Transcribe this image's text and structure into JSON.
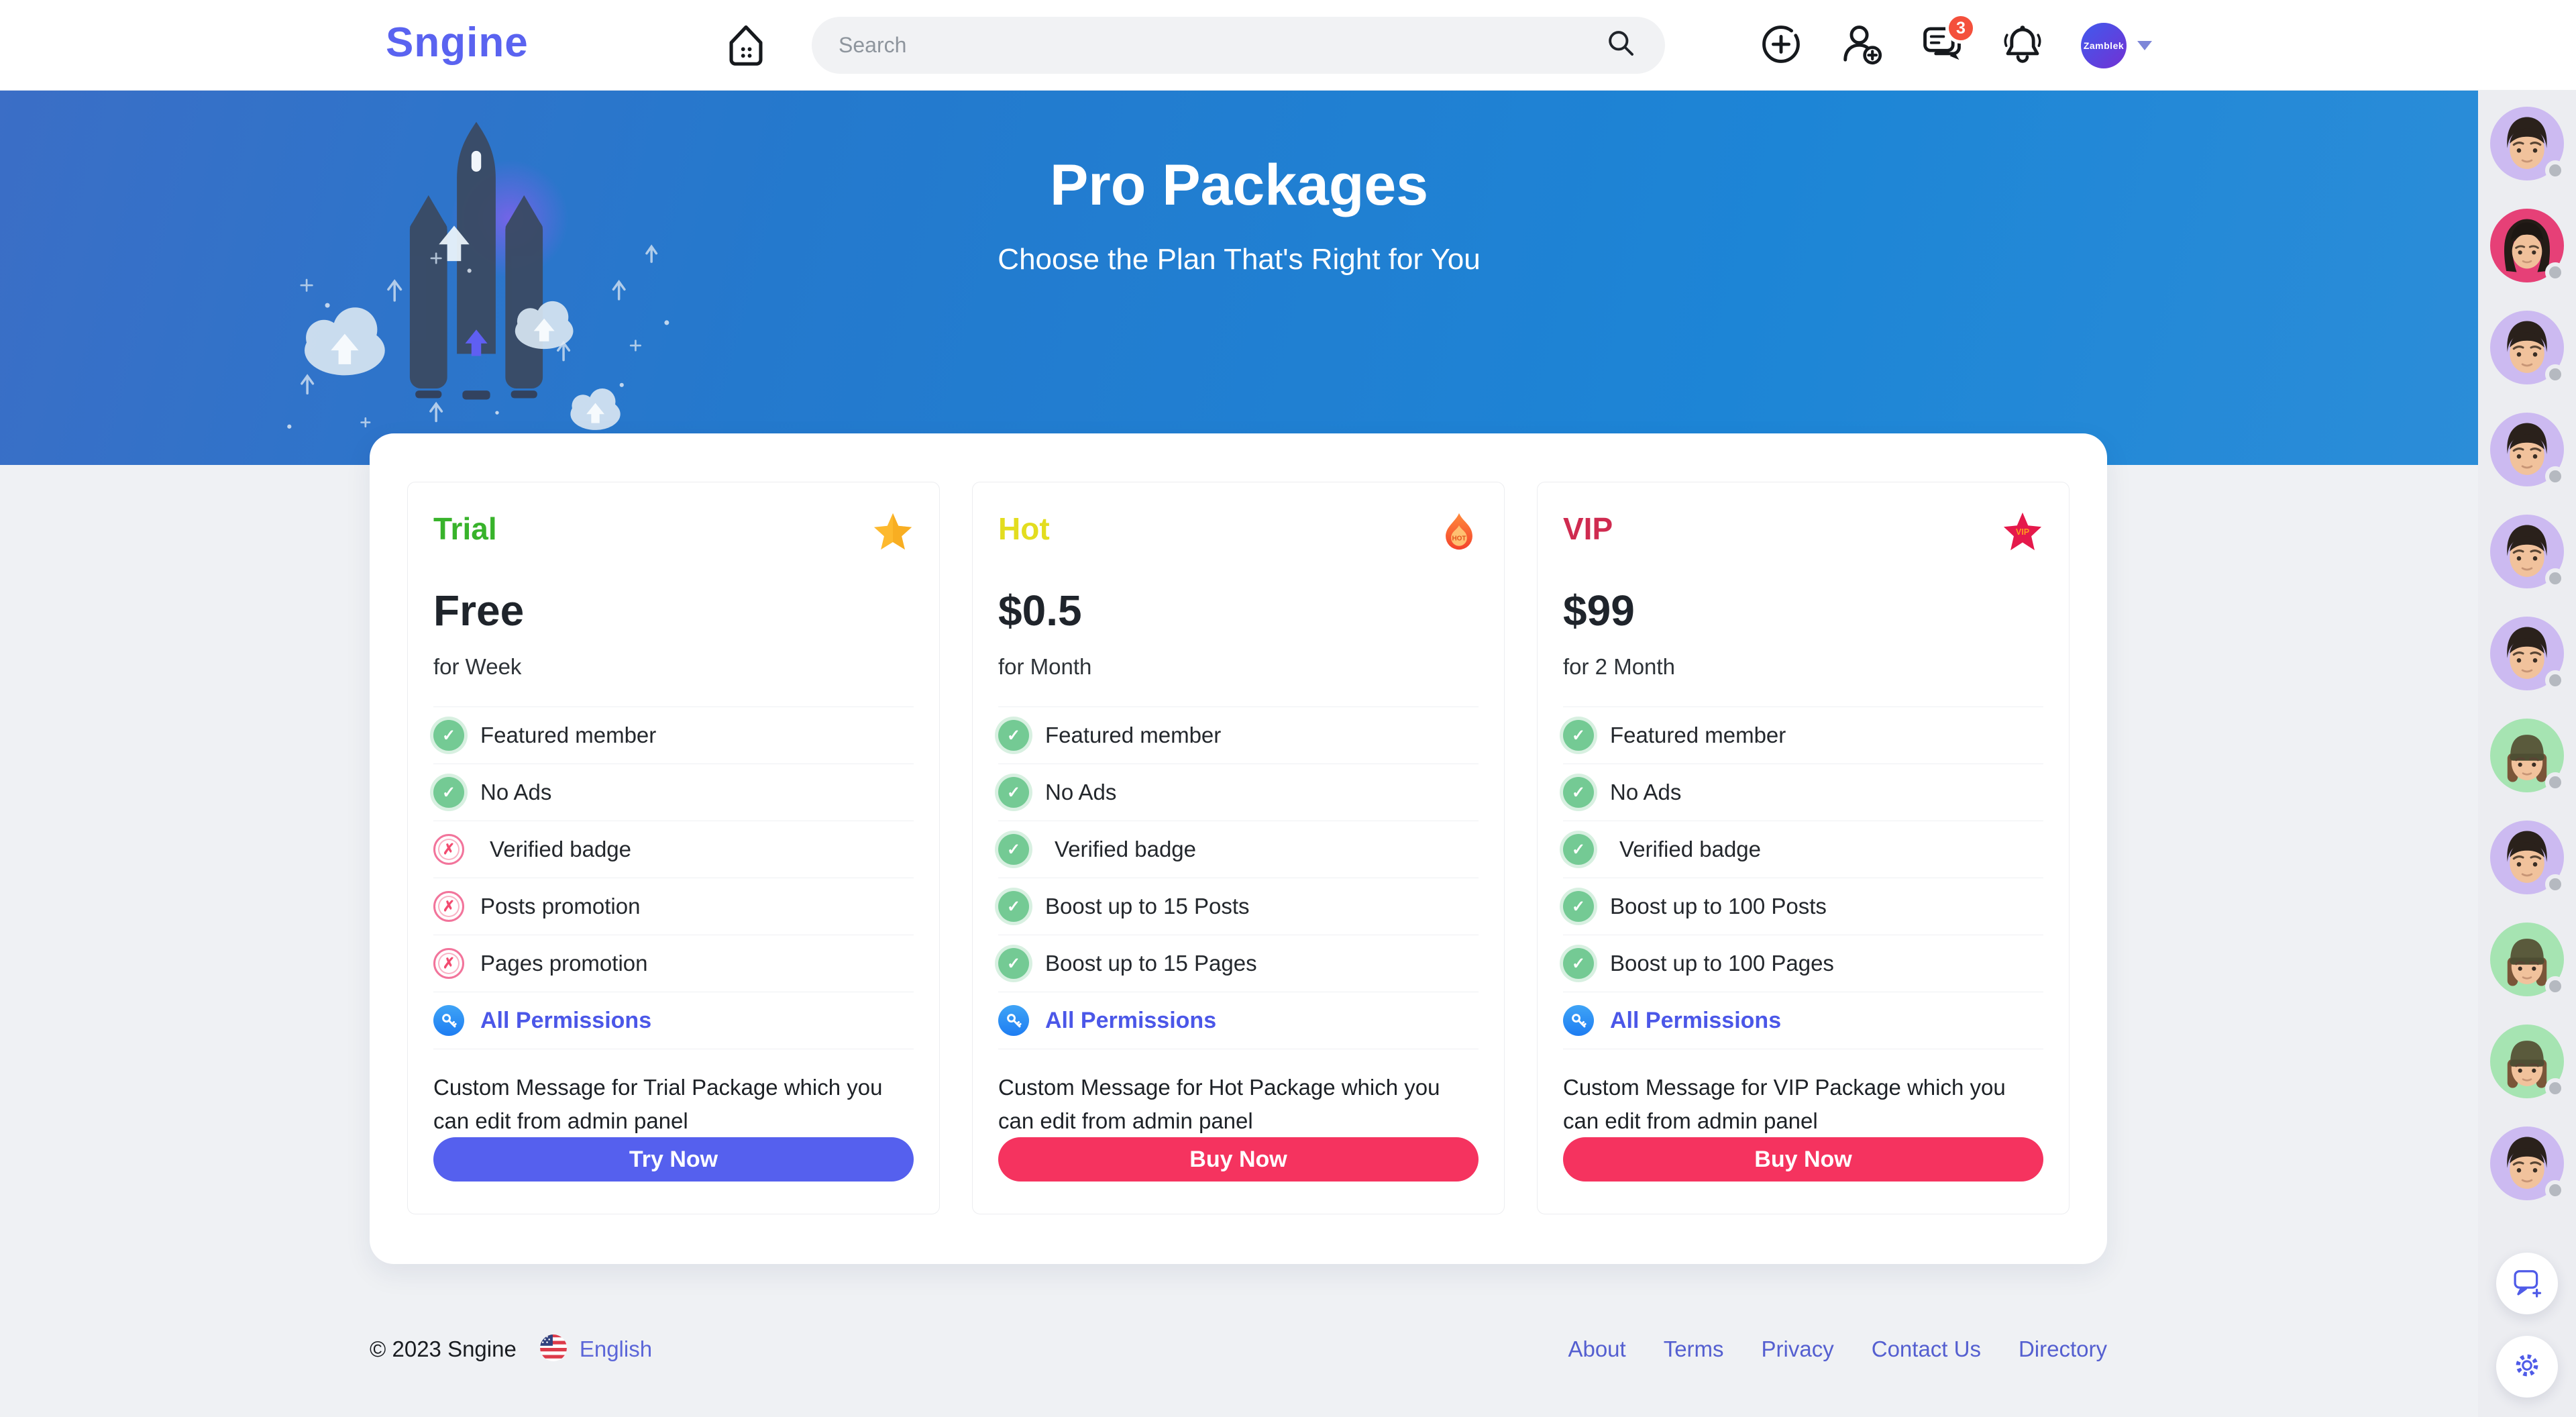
{
  "header": {
    "logo": "Sngine",
    "search_placeholder": "Search",
    "messages_badge": "3",
    "avatar_label": "Zamblek",
    "accent_color": "#5a63f0"
  },
  "hero": {
    "title": "Pro Packages",
    "subtitle": "Choose the Plan That's Right for You"
  },
  "packages": [
    {
      "name": "Trial",
      "color": "#38b32b",
      "icon": "star",
      "price": "Free",
      "period": "for Week",
      "features": [
        {
          "text": "Featured member",
          "status": "yes"
        },
        {
          "text": "No Ads",
          "status": "yes"
        },
        {
          "text": "Verified badge",
          "status": "no",
          "indent": true
        },
        {
          "text": "Posts promotion",
          "status": "no"
        },
        {
          "text": "Pages promotion",
          "status": "no"
        }
      ],
      "permissions_label": "All Permissions",
      "message": "Custom Message for Trial Package which you can edit from admin panel",
      "button_label": "Try Now",
      "button_color": "#5560ee"
    },
    {
      "name": "Hot",
      "color": "#e3dd1f",
      "icon": "fire",
      "price": "$0.5",
      "period": "for Month",
      "features": [
        {
          "text": "Featured member",
          "status": "yes"
        },
        {
          "text": "No Ads",
          "status": "yes"
        },
        {
          "text": "Verified badge",
          "status": "yes",
          "indent": true
        },
        {
          "text": "Boost up to 15 Posts",
          "status": "yes"
        },
        {
          "text": "Boost up to 15 Pages",
          "status": "yes"
        }
      ],
      "permissions_label": "All Permissions",
      "message": "Custom Message for Hot Package which you can edit from admin panel",
      "button_label": "Buy Now",
      "button_color": "#f5335f"
    },
    {
      "name": "VIP",
      "color": "#cf2b50",
      "icon": "vip",
      "price": "$99",
      "period": "for 2 Month",
      "features": [
        {
          "text": "Featured member",
          "status": "yes"
        },
        {
          "text": "No Ads",
          "status": "yes"
        },
        {
          "text": "Verified badge",
          "status": "yes",
          "indent": true
        },
        {
          "text": "Boost up to 100 Posts",
          "status": "yes"
        },
        {
          "text": "Boost up to 100 Pages",
          "status": "yes"
        }
      ],
      "permissions_label": "All Permissions",
      "message": "Custom Message for VIP Package which you can edit from admin panel",
      "button_label": "Buy Now",
      "button_color": "#f5335f"
    }
  ],
  "footer": {
    "copyright": "© 2023 Sngine",
    "language": "English",
    "links": [
      "About",
      "Terms",
      "Privacy",
      "Contact Us",
      "Directory"
    ]
  },
  "sidebar": {
    "status_color": "#b5b9c0",
    "avatars": [
      {
        "variant": "male",
        "bg": "#ccbaf1"
      },
      {
        "variant": "hair",
        "bg": "#e64077"
      },
      {
        "variant": "male",
        "bg": "#ccbaf1"
      },
      {
        "variant": "male",
        "bg": "#ccbaf1"
      },
      {
        "variant": "male",
        "bg": "#ccbaf1"
      },
      {
        "variant": "male",
        "bg": "#ccbaf1"
      },
      {
        "variant": "beanie",
        "bg": "#a6e4b2"
      },
      {
        "variant": "male",
        "bg": "#ccbaf1"
      },
      {
        "variant": "beanie",
        "bg": "#a6e4b2"
      },
      {
        "variant": "beanie",
        "bg": "#a6e4b2"
      },
      {
        "variant": "male",
        "bg": "#ccbaf1"
      }
    ]
  }
}
